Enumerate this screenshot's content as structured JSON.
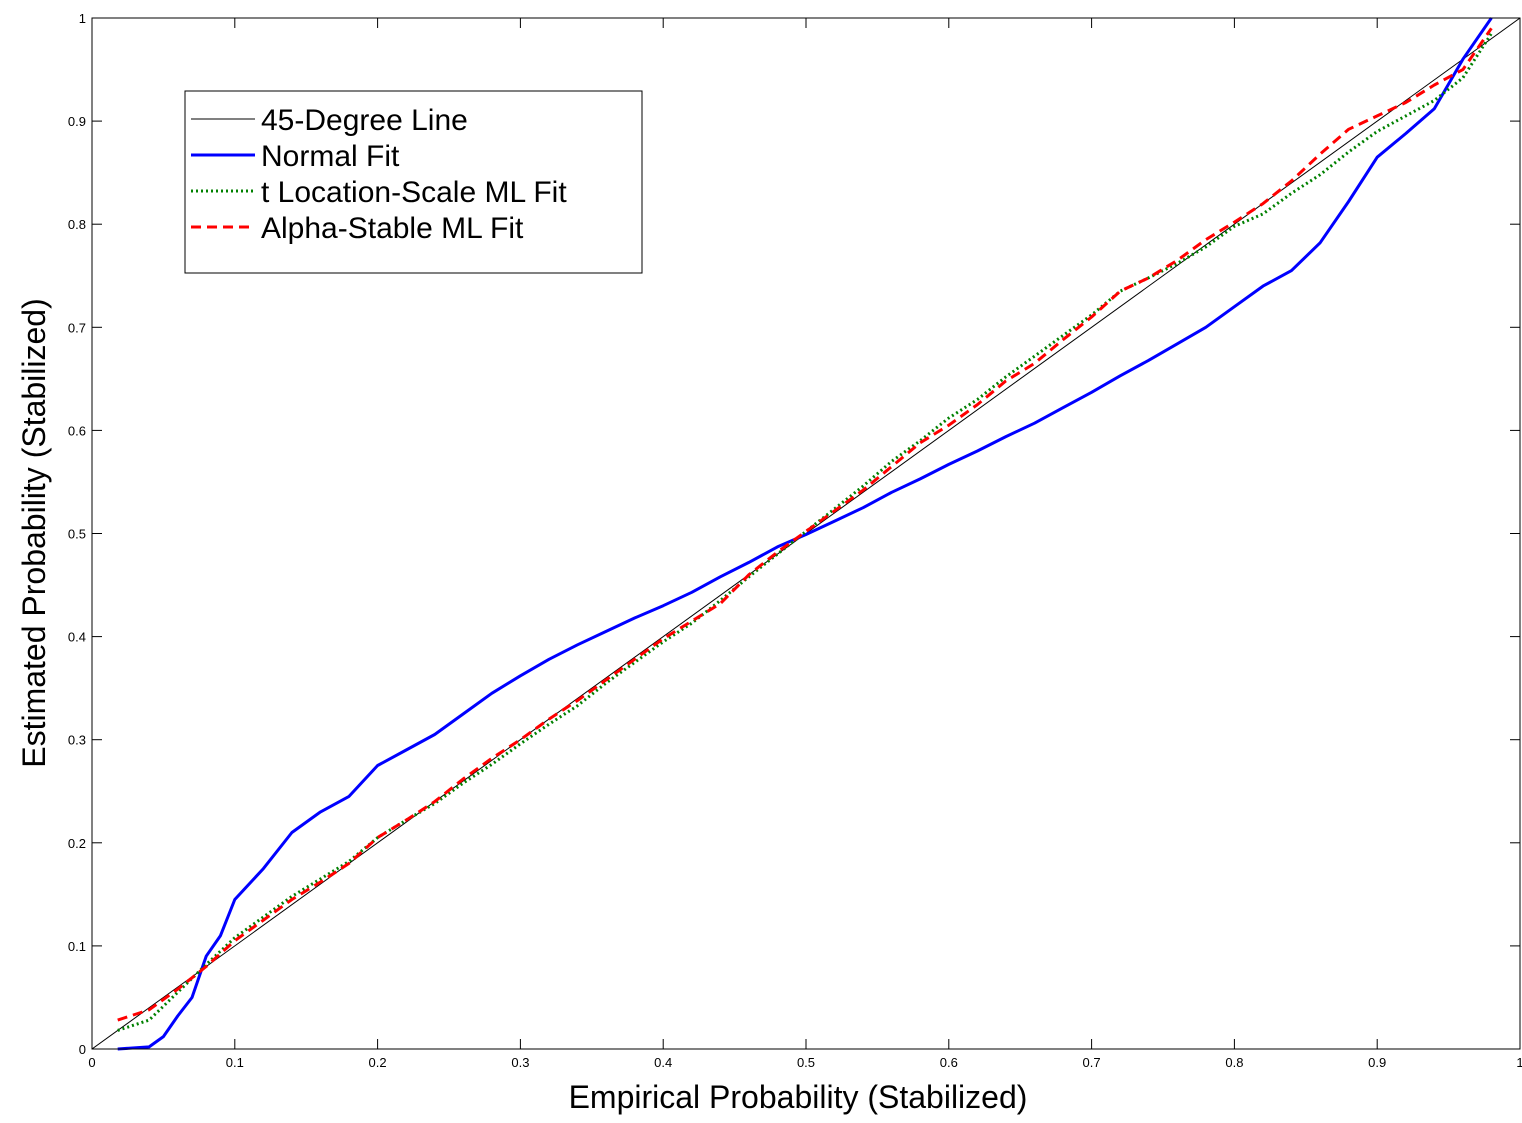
{
  "chart_data": {
    "type": "line",
    "title": "",
    "xlabel": "Empirical Probability (Stabilized)",
    "ylabel": "Estimated Probability (Stabilized)",
    "xlim": [
      0,
      1
    ],
    "ylim": [
      0,
      1
    ],
    "xticks": [
      "0",
      "0.1",
      "0.2",
      "0.3",
      "0.4",
      "0.5",
      "0.6",
      "0.7",
      "0.8",
      "0.9",
      "1"
    ],
    "yticks": [
      "0",
      "0.1",
      "0.2",
      "0.3",
      "0.4",
      "0.5",
      "0.6",
      "0.7",
      "0.8",
      "0.9",
      "1"
    ],
    "grid": false,
    "legend_position": "top-left",
    "series": [
      {
        "name": "45-Degree Line",
        "color": "#000000",
        "style": "solid",
        "x": [
          0,
          1
        ],
        "y": [
          0,
          1
        ]
      },
      {
        "name": "Normal Fit",
        "color": "#0000ff",
        "style": "solid",
        "x": [
          0.018,
          0.04,
          0.05,
          0.06,
          0.07,
          0.08,
          0.09,
          0.1,
          0.12,
          0.14,
          0.16,
          0.18,
          0.2,
          0.22,
          0.24,
          0.26,
          0.28,
          0.3,
          0.32,
          0.34,
          0.36,
          0.38,
          0.4,
          0.42,
          0.44,
          0.46,
          0.48,
          0.5,
          0.52,
          0.54,
          0.56,
          0.58,
          0.6,
          0.62,
          0.64,
          0.66,
          0.68,
          0.7,
          0.72,
          0.74,
          0.76,
          0.78,
          0.8,
          0.82,
          0.84,
          0.86,
          0.88,
          0.9,
          0.92,
          0.94,
          0.96,
          0.98
        ],
        "y": [
          0.0,
          0.002,
          0.012,
          0.032,
          0.05,
          0.09,
          0.11,
          0.145,
          0.175,
          0.21,
          0.23,
          0.245,
          0.275,
          0.29,
          0.305,
          0.325,
          0.345,
          0.362,
          0.378,
          0.392,
          0.405,
          0.418,
          0.43,
          0.443,
          0.458,
          0.472,
          0.487,
          0.499,
          0.512,
          0.525,
          0.54,
          0.553,
          0.567,
          0.58,
          0.594,
          0.607,
          0.622,
          0.637,
          0.653,
          0.668,
          0.684,
          0.7,
          0.72,
          0.74,
          0.755,
          0.782,
          0.822,
          0.865,
          0.888,
          0.912,
          0.96,
          1.0
        ]
      },
      {
        "name": "t Location-Scale ML Fit",
        "color": "#008000",
        "style": "dotted",
        "x": [
          0.018,
          0.04,
          0.06,
          0.08,
          0.1,
          0.12,
          0.14,
          0.16,
          0.18,
          0.2,
          0.22,
          0.24,
          0.26,
          0.28,
          0.3,
          0.32,
          0.34,
          0.36,
          0.38,
          0.4,
          0.42,
          0.44,
          0.46,
          0.48,
          0.5,
          0.52,
          0.54,
          0.56,
          0.58,
          0.6,
          0.62,
          0.64,
          0.66,
          0.68,
          0.7,
          0.72,
          0.74,
          0.76,
          0.78,
          0.8,
          0.82,
          0.84,
          0.86,
          0.88,
          0.9,
          0.92,
          0.94,
          0.96,
          0.98
        ],
        "y": [
          0.018,
          0.028,
          0.055,
          0.082,
          0.108,
          0.128,
          0.148,
          0.165,
          0.182,
          0.205,
          0.222,
          0.238,
          0.258,
          0.276,
          0.296,
          0.315,
          0.333,
          0.355,
          0.375,
          0.395,
          0.413,
          0.435,
          0.458,
          0.48,
          0.502,
          0.524,
          0.546,
          0.57,
          0.59,
          0.612,
          0.63,
          0.652,
          0.672,
          0.692,
          0.712,
          0.735,
          0.748,
          0.762,
          0.778,
          0.798,
          0.81,
          0.83,
          0.848,
          0.87,
          0.89,
          0.905,
          0.92,
          0.942,
          0.985
        ]
      },
      {
        "name": "Alpha-Stable ML Fit",
        "color": "#ff0000",
        "style": "dashed",
        "x": [
          0.018,
          0.04,
          0.06,
          0.08,
          0.1,
          0.12,
          0.14,
          0.16,
          0.18,
          0.2,
          0.22,
          0.24,
          0.26,
          0.28,
          0.3,
          0.32,
          0.34,
          0.36,
          0.38,
          0.4,
          0.42,
          0.44,
          0.46,
          0.48,
          0.5,
          0.52,
          0.54,
          0.56,
          0.58,
          0.6,
          0.62,
          0.64,
          0.66,
          0.68,
          0.7,
          0.72,
          0.74,
          0.76,
          0.78,
          0.8,
          0.82,
          0.84,
          0.86,
          0.88,
          0.9,
          0.92,
          0.94,
          0.96,
          0.98
        ],
        "y": [
          0.028,
          0.038,
          0.058,
          0.08,
          0.105,
          0.125,
          0.145,
          0.162,
          0.18,
          0.205,
          0.222,
          0.24,
          0.262,
          0.282,
          0.3,
          0.32,
          0.338,
          0.358,
          0.378,
          0.398,
          0.415,
          0.432,
          0.46,
          0.482,
          0.502,
          0.522,
          0.542,
          0.565,
          0.588,
          0.605,
          0.625,
          0.648,
          0.665,
          0.688,
          0.71,
          0.735,
          0.748,
          0.765,
          0.785,
          0.802,
          0.82,
          0.842,
          0.868,
          0.892,
          0.905,
          0.918,
          0.935,
          0.95,
          0.99
        ]
      }
    ]
  }
}
